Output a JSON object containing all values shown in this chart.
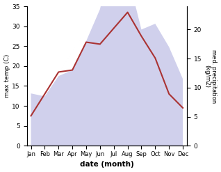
{
  "months": [
    "Jan",
    "Feb",
    "Mar",
    "Apr",
    "May",
    "Jun",
    "Jul",
    "Aug",
    "Sep",
    "Oct",
    "Nov",
    "Dec"
  ],
  "temp_max": [
    7.5,
    13.0,
    18.5,
    19.0,
    26.0,
    25.5,
    29.5,
    33.5,
    27.5,
    22.0,
    13.0,
    9.5
  ],
  "precipitation": [
    9.0,
    8.5,
    12.0,
    13.0,
    18.0,
    23.5,
    33.5,
    29.5,
    20.0,
    21.0,
    17.0,
    11.5
  ],
  "temp_color": "#aa3333",
  "precip_fill_color": "#aaaadd",
  "ylabel_left": "max temp (C)",
  "ylabel_right": "med. precipitation\n(kg/m2)",
  "xlabel": "date (month)",
  "ylim_left": [
    0,
    35
  ],
  "ylim_right": [
    0,
    35
  ],
  "yticks_left": [
    0,
    5,
    10,
    15,
    20,
    25,
    30,
    35
  ],
  "yticks_right_vals": [
    0,
    5,
    10,
    15,
    20
  ],
  "yticks_right_pos": [
    0,
    7.29,
    14.58,
    21.875,
    29.17
  ],
  "background_color": "#ffffff"
}
